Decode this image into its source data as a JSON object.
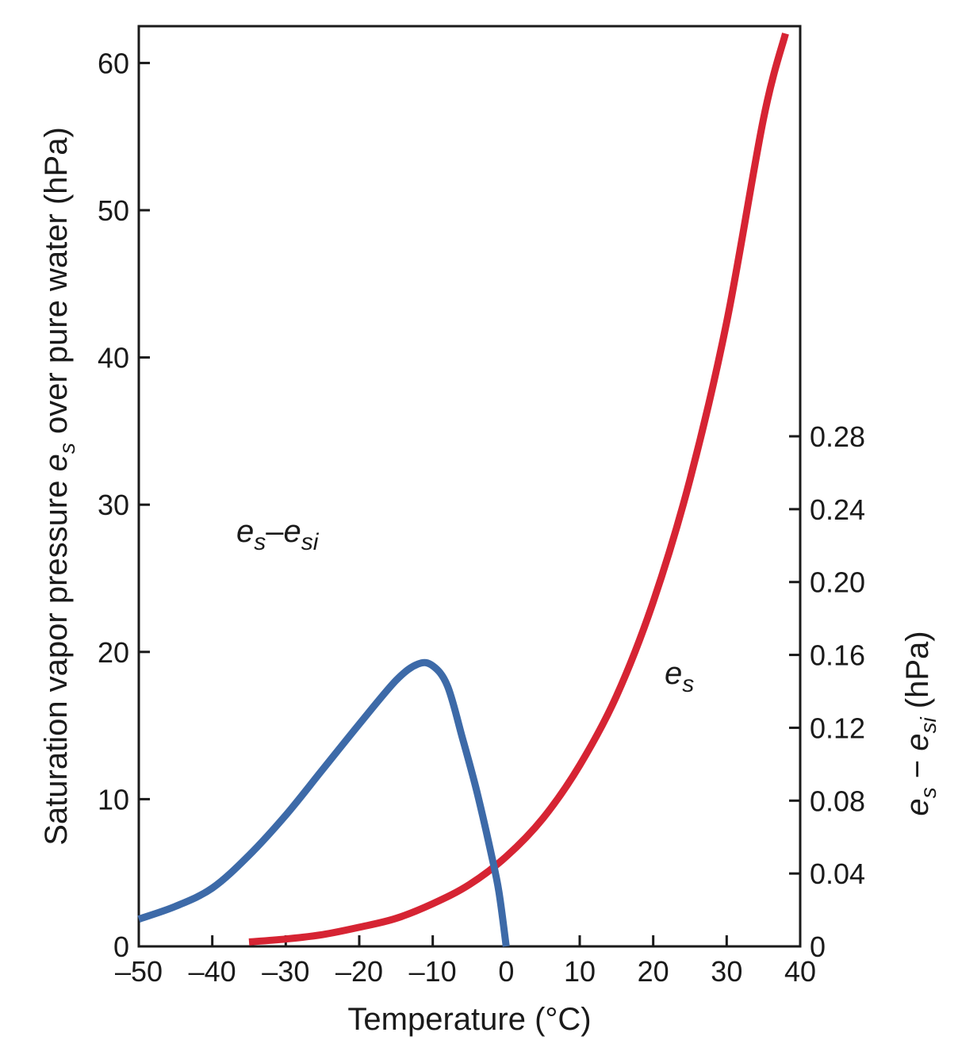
{
  "chart_data": {
    "type": "line",
    "xlabel": "Temperature (°C)",
    "ylabel": {
      "prefix": "Saturation vapor pressure ",
      "symbol": "e",
      "subscript": "s",
      "suffix": " over pure water (hPa)"
    },
    "y2label": {
      "symbol1": "e",
      "subscript1": "s",
      "operator": " − ",
      "symbol2": "e",
      "subscript2": "si",
      "suffix": " (hPa)"
    },
    "xlim": [
      -50,
      40
    ],
    "ylim": [
      0,
      62.5
    ],
    "y2lim": [
      0,
      0.28
    ],
    "x_ticks": [
      -50,
      -40,
      -30,
      -20,
      -10,
      0,
      10,
      20,
      30,
      40
    ],
    "x_tick_labels": [
      "–50",
      "–40",
      "–30",
      "–20",
      "–10",
      "0",
      "10",
      "20",
      "30",
      "40"
    ],
    "y_ticks": [
      0,
      10,
      20,
      30,
      40,
      50,
      60
    ],
    "y_tick_labels": [
      "0",
      "10",
      "20",
      "30",
      "40",
      "50",
      "60"
    ],
    "y2_ticks": [
      0,
      0.04,
      0.08,
      0.12,
      0.16,
      0.2,
      0.24,
      0.28
    ],
    "y2_tick_labels": [
      "0",
      "0.04",
      "0.08",
      "0.12",
      "0.16",
      "0.20",
      "0.24",
      "0.28"
    ],
    "grid": false,
    "series": [
      {
        "name": {
          "symbol": "e",
          "subscript": "s"
        },
        "axis": "left",
        "color": "#d62433",
        "x": [
          -35,
          -30,
          -25,
          -20,
          -15,
          -10,
          -5,
          0,
          5,
          10,
          15,
          20,
          25,
          30,
          35,
          38
        ],
        "y": [
          0.3,
          0.5,
          0.8,
          1.3,
          1.9,
          2.9,
          4.2,
          6.1,
          8.7,
          12.3,
          17.0,
          23.4,
          31.7,
          42.4,
          56.2,
          62.0
        ]
      },
      {
        "name": {
          "symbol1": "e",
          "subscript1": "s",
          "operator": "–",
          "symbol2": "e",
          "subscript2": "si"
        },
        "axis": "right",
        "color": "#3d6aa8",
        "x": [
          -50,
          -45,
          -40,
          -35,
          -30,
          -25,
          -20,
          -15,
          -12,
          -10,
          -8,
          -6,
          -4,
          -2,
          -1,
          0
        ],
        "y": [
          0.015,
          0.022,
          0.032,
          0.05,
          0.072,
          0.097,
          0.122,
          0.146,
          0.155,
          0.154,
          0.143,
          0.115,
          0.085,
          0.05,
          0.03,
          0.0
        ]
      }
    ]
  }
}
